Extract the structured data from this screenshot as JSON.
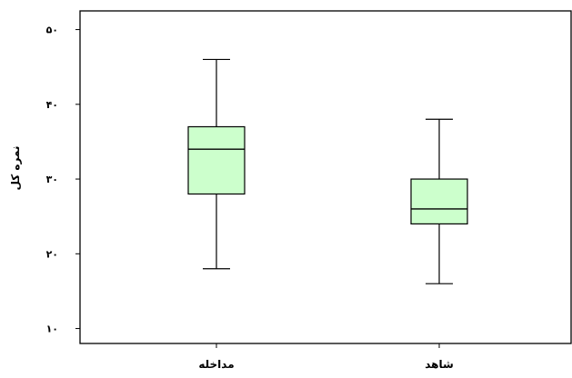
{
  "chart_data": {
    "type": "boxplot",
    "title": "",
    "xlabel": "",
    "ylabel": "نمره کل",
    "ylim": [
      8,
      52.5
    ],
    "yticks": [
      {
        "value": 10,
        "label": "۱۰"
      },
      {
        "value": 20,
        "label": "۲۰"
      },
      {
        "value": 30,
        "label": "۳۰"
      },
      {
        "value": 40,
        "label": "۴۰"
      },
      {
        "value": 50,
        "label": "۵۰"
      }
    ],
    "grid": false,
    "box_fill": "#ccffcc",
    "stroke_color": "#000000",
    "categories": [
      "مداخله",
      "شاهد"
    ],
    "boxes": [
      {
        "name": "مداخله",
        "min": 18,
        "q1": 28,
        "median": 34,
        "q3": 37,
        "max": 46
      },
      {
        "name": "شاهد",
        "min": 16,
        "q1": 24,
        "median": 26,
        "q3": 30,
        "max": 38
      }
    ]
  }
}
